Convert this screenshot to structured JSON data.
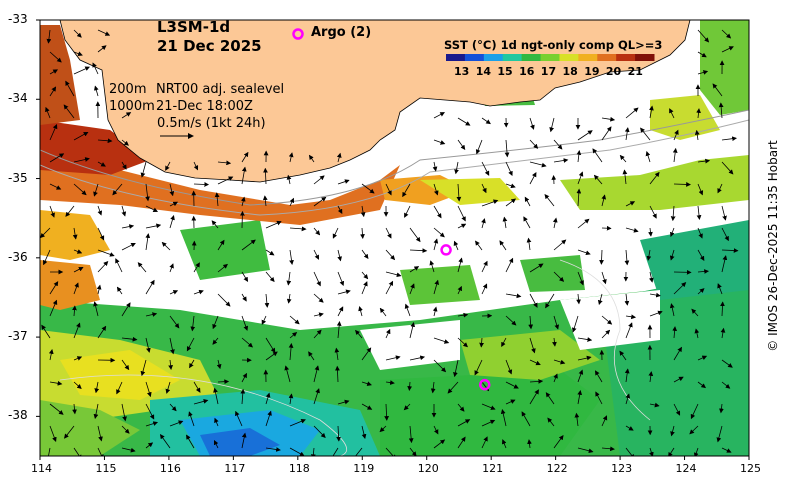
{
  "title": {
    "product": "L3SM-1d",
    "date": "21 Dec 2025"
  },
  "argo": {
    "legend_label": "Argo (2)",
    "marker_color": "#ff00ff",
    "floats": [
      {
        "lon": 120.3,
        "lat": -35.9
      },
      {
        "lon": 120.9,
        "lat": -37.6
      }
    ]
  },
  "annotations": {
    "isobath_200": "200m",
    "isobath_1000": "1000m",
    "sealevel_product": "NRT00 adj. sealevel",
    "sealevel_time": "21-Dec 18:00Z",
    "velocity_scale": "0.5m/s (1kt 24h)"
  },
  "colorbar": {
    "title": "SST (°C) 1d ngt-only comp QL>=3",
    "ticks": [
      "13",
      "14",
      "15",
      "16",
      "17",
      "18",
      "19",
      "20",
      "21"
    ],
    "colors": [
      "#1a1a8c",
      "#1450d8",
      "#1aa0e8",
      "#22c8a0",
      "#30b840",
      "#78d030",
      "#d8e028",
      "#f0b020",
      "#e07020",
      "#b83010",
      "#801008"
    ]
  },
  "axes": {
    "lon_ticks": [
      "114",
      "115",
      "116",
      "117",
      "118",
      "119",
      "120",
      "121",
      "122",
      "123",
      "124",
      "125"
    ],
    "lat_ticks": [
      "-33",
      "-34",
      "-35",
      "-36",
      "-37",
      "-38"
    ],
    "lon_range": [
      114,
      125
    ],
    "lat_range": [
      -38.5,
      -33
    ]
  },
  "colors": {
    "land": "#fcc896",
    "no_data": "#ffffff",
    "coast": "#000000"
  },
  "credit": "© IMOS 26-Dec-2025 11:35 Hobart"
}
